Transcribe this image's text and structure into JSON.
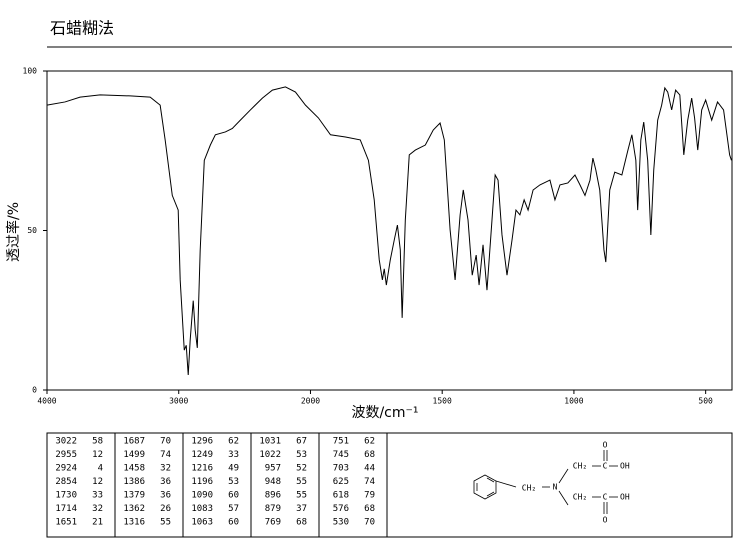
{
  "chart_data": {
    "type": "line",
    "title": "石蜡糊法",
    "x_label": "波数/cm⁻¹",
    "y_label": "透过率/%",
    "xlim": [
      4000,
      400
    ],
    "ylim": [
      0,
      100
    ],
    "xticks": [
      4000,
      3000,
      2000,
      1500,
      1000,
      500
    ],
    "yticks": [
      0,
      50,
      100
    ],
    "x_scale_break": 2000,
    "x_scale_factor_below_break": 2,
    "grid": false,
    "series": [
      {
        "color": "#000000",
        "x": [
          4000,
          3863,
          3749,
          3597,
          3369,
          3217,
          3141,
          3103,
          3049,
          3004,
          2989,
          2958,
          2943,
          2928,
          2913,
          2890,
          2875,
          2859,
          2837,
          2806,
          2760,
          2722,
          2646,
          2593,
          2532,
          2456,
          2365,
          2289,
          2190,
          2114,
          2038,
          1970,
          1924,
          1867,
          1811,
          1780,
          1758,
          1739,
          1727,
          1720,
          1712,
          1697,
          1682,
          1670,
          1659,
          1652,
          1640,
          1625,
          1602,
          1564,
          1534,
          1508,
          1492,
          1470,
          1451,
          1432,
          1420,
          1402,
          1386,
          1371,
          1360,
          1345,
          1330,
          1311,
          1299,
          1288,
          1273,
          1254,
          1235,
          1220,
          1205,
          1189,
          1174,
          1155,
          1129,
          1091,
          1072,
          1053,
          1023,
          996,
          977,
          958,
          939,
          928,
          917,
          902,
          886,
          879,
          864,
          845,
          818,
          795,
          780,
          765,
          758,
          746,
          735,
          720,
          708,
          697,
          682,
          667,
          655,
          644,
          629,
          614,
          598,
          583,
          568,
          553,
          542,
          530,
          515,
          500,
          477,
          455,
          432,
          409,
          402
        ],
        "values": [
          89.3,
          90.3,
          91.8,
          92.5,
          92.2,
          91.8,
          89.3,
          78.4,
          61,
          56.4,
          34.5,
          12.5,
          14,
          4.7,
          15.7,
          28,
          18.8,
          13.2,
          43.9,
          72,
          76.8,
          80,
          80.9,
          82,
          84.6,
          87.8,
          91.5,
          94,
          95,
          93.4,
          89.3,
          85.3,
          80,
          79.3,
          78.4,
          72,
          59.6,
          40.8,
          34.5,
          38,
          32.9,
          40.8,
          47,
          51.7,
          43.9,
          22.6,
          53.3,
          73.7,
          75.2,
          76.8,
          81.5,
          83.7,
          78.4,
          50.2,
          34.5,
          54.9,
          62.7,
          53.3,
          36,
          42.3,
          32.9,
          45.5,
          31.3,
          53.3,
          67.4,
          65.8,
          48.6,
          36,
          47,
          56.4,
          54.9,
          59.6,
          56.4,
          62.7,
          64.3,
          65.8,
          59.6,
          64.3,
          64.9,
          67.4,
          64.3,
          61,
          65.8,
          72.7,
          69,
          62.7,
          43.9,
          40.1,
          62.7,
          68.3,
          67.4,
          75.2,
          80,
          72,
          56.4,
          78.4,
          84,
          72,
          48.6,
          69,
          84.6,
          89.3,
          94.7,
          93.4,
          87.8,
          94,
          92.5,
          73.7,
          84.6,
          91.5,
          85.3,
          75.2,
          87.8,
          90.9,
          84.6,
          90.3,
          87.8,
          73.7,
          72
        ]
      }
    ]
  },
  "peak_table": [
    [
      [
        "3022",
        "58"
      ],
      [
        "2955",
        "12"
      ],
      [
        "2924",
        "4"
      ],
      [
        "2854",
        "12"
      ],
      [
        "1730",
        "33"
      ],
      [
        "1714",
        "32"
      ],
      [
        "1651",
        "21"
      ]
    ],
    [
      [
        "1687",
        "70"
      ],
      [
        "1499",
        "74"
      ],
      [
        "1458",
        "32"
      ],
      [
        "1386",
        "36"
      ],
      [
        "1379",
        "36"
      ],
      [
        "1362",
        "26"
      ],
      [
        "1316",
        "55"
      ]
    ],
    [
      [
        "1296",
        "62"
      ],
      [
        "1249",
        "33"
      ],
      [
        "1216",
        "49"
      ],
      [
        "1196",
        "53"
      ],
      [
        "1090",
        "60"
      ],
      [
        "1083",
        "57"
      ],
      [
        "1063",
        "60"
      ]
    ],
    [
      [
        "1031",
        "67"
      ],
      [
        "1022",
        "53"
      ],
      [
        "957",
        "52"
      ],
      [
        "948",
        "55"
      ],
      [
        "896",
        "55"
      ],
      [
        "879",
        "37"
      ],
      [
        "769",
        "68"
      ]
    ],
    [
      [
        "751",
        "62"
      ],
      [
        "745",
        "68"
      ],
      [
        "703",
        "44"
      ],
      [
        "625",
        "74"
      ],
      [
        "618",
        "79"
      ],
      [
        "576",
        "68"
      ],
      [
        "530",
        "70"
      ]
    ]
  ],
  "structure": {
    "benzyl_ch2": "CH₂",
    "n": "N",
    "upper_ch2": "CH₂",
    "upper_c": "C",
    "upper_o": "O",
    "upper_oh": "OH",
    "lower_ch2": "CH₂",
    "lower_c": "C",
    "lower_o": "O",
    "lower_oh": "OH"
  }
}
